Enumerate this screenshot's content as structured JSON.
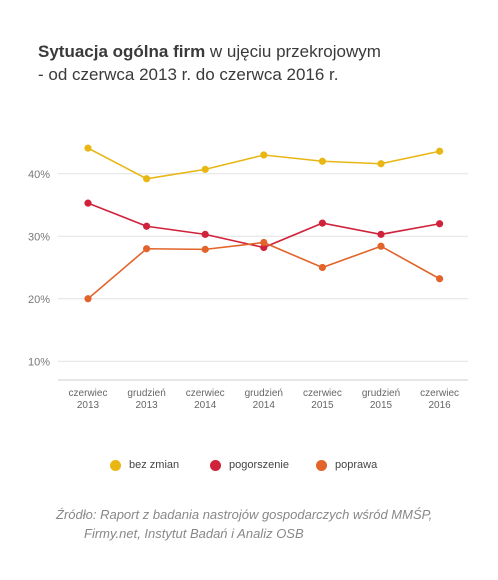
{
  "title": {
    "bold": "Sytuacja ogólna firm",
    "rest": " w ujęciu przekrojowym",
    "line2": "- od czerwca 2013 r. do czerwca 2016 r."
  },
  "source": {
    "line1": "Źródło: Raport z badania nastrojów gospodarczych wśród MMŚP,",
    "line2": "Firmy.net, Instytut Badań i Analiz OSB"
  },
  "legend": [
    {
      "label": "bez zmian",
      "color": "#e8b714"
    },
    {
      "label": "pogorszenie",
      "color": "#d0223a"
    },
    {
      "label": "poprawa",
      "color": "#e2642a"
    }
  ],
  "chart_data": {
    "type": "line",
    "categories": [
      [
        "czerwiec",
        "2013"
      ],
      [
        "grudzień",
        "2013"
      ],
      [
        "czerwiec",
        "2014"
      ],
      [
        "grudzień",
        "2014"
      ],
      [
        "czerwiec",
        "2015"
      ],
      [
        "grudzień",
        "2015"
      ],
      [
        "czerwiec",
        "2016"
      ]
    ],
    "yticks": [
      "10%",
      "20%",
      "30%",
      "40%"
    ],
    "ytick_values": [
      10,
      20,
      30,
      40
    ],
    "ylim": [
      7,
      47
    ],
    "grid": true,
    "legend_position": "bottom",
    "series": [
      {
        "name": "bez zmian",
        "color": "#e8b714",
        "values": [
          44.1,
          39.2,
          40.7,
          43.0,
          42.0,
          41.6,
          43.6
        ]
      },
      {
        "name": "pogorszenie",
        "color": "#d0223a",
        "values": [
          35.3,
          31.6,
          30.3,
          28.2,
          32.1,
          30.3,
          32.0
        ]
      },
      {
        "name": "poprawa",
        "color": "#e2642a",
        "values": [
          20.0,
          28.0,
          27.9,
          29.0,
          25.0,
          28.4,
          23.2
        ]
      }
    ]
  }
}
